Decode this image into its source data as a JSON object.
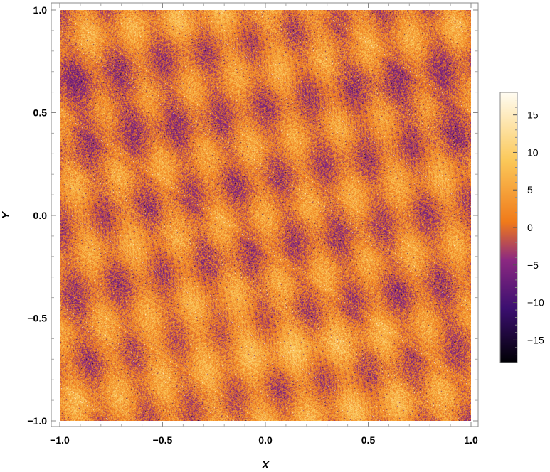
{
  "chart_data": {
    "type": "heatmap",
    "title": "",
    "xlabel": "X",
    "ylabel": "Y",
    "xlim": [
      -1.0,
      1.0
    ],
    "ylim": [
      -1.0,
      1.0
    ],
    "x_ticks": [
      -1.0,
      -0.5,
      0.0,
      0.5,
      1.0
    ],
    "y_ticks": [
      -1.0,
      -0.5,
      0.0,
      0.5,
      1.0
    ],
    "x_tick_labels": [
      "−1.0",
      "−0.5",
      "0.0",
      "0.5",
      "1.0"
    ],
    "y_tick_labels": [
      "−1.0",
      "−0.5",
      "0.0",
      "0.5",
      "1.0"
    ],
    "colorbar": {
      "range": [
        -18,
        18
      ],
      "ticks": [
        -15,
        -10,
        -5,
        0,
        5,
        10,
        15
      ],
      "tick_labels": [
        "−15",
        "−10",
        "−5",
        "0",
        "5",
        "10",
        "15"
      ],
      "colormap": "inferno-like (black → purple → orange → light yellow)"
    },
    "field_description": "noisy interference pattern: diagonal stripes, bright band near Y≈-0.6, darker purple patches near edges",
    "grid": false
  },
  "colors": {
    "cmap_black": "#000004",
    "cmap_dark_purple": "#3b0f70",
    "cmap_purple": "#8c2981",
    "cmap_orange": "#f07a1a",
    "cmap_yellow": "#fbc95a",
    "cmap_white": "#fffcf2",
    "frame": "#888888"
  }
}
